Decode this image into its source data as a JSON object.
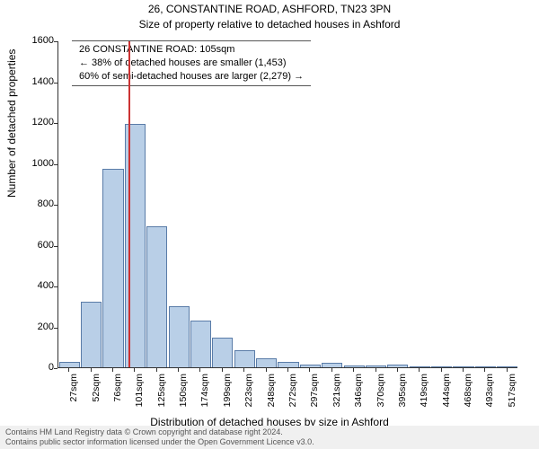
{
  "title_main": "26, CONSTANTINE ROAD, ASHFORD, TN23 3PN",
  "title_sub": "Size of property relative to detached houses in Ashford",
  "annotation": {
    "line1": "26 CONSTANTINE ROAD: 105sqm",
    "line2": "← 38% of detached houses are smaller (1,453)",
    "line3": "60% of semi-detached houses are larger (2,279) →"
  },
  "ylabel": "Number of detached properties",
  "xlabel": "Distribution of detached houses by size in Ashford",
  "footer": {
    "line1": "Contains HM Land Registry data © Crown copyright and database right 2024.",
    "line2": "Contains public sector information licensed under the Open Government Licence v3.0."
  },
  "chart": {
    "type": "histogram",
    "ylim": [
      0,
      1600
    ],
    "ytick_step": 200,
    "xtick_labels": [
      "27sqm",
      "52sqm",
      "76sqm",
      "101sqm",
      "125sqm",
      "150sqm",
      "174sqm",
      "199sqm",
      "223sqm",
      "248sqm",
      "272sqm",
      "297sqm",
      "321sqm",
      "346sqm",
      "370sqm",
      "395sqm",
      "419sqm",
      "444sqm",
      "468sqm",
      "493sqm",
      "517sqm"
    ],
    "bar_values": [
      25,
      320,
      970,
      1190,
      690,
      300,
      230,
      145,
      85,
      45,
      28,
      15,
      20,
      10,
      8,
      12,
      5,
      4,
      3,
      2,
      2
    ],
    "bar_color": "#b9cfe7",
    "bar_border_color": "#5a7ca8",
    "bar_width": 0.95,
    "marker_position_index": 3.2,
    "marker_color": "#cc3333",
    "background_color": "#ffffff",
    "axis_color": "#333333",
    "font_family": "Arial",
    "title_fontsize": 12,
    "label_fontsize": 12,
    "tick_fontsize": 11,
    "xtick_fontsize": 10.5,
    "annotation_fontsize": 11
  }
}
